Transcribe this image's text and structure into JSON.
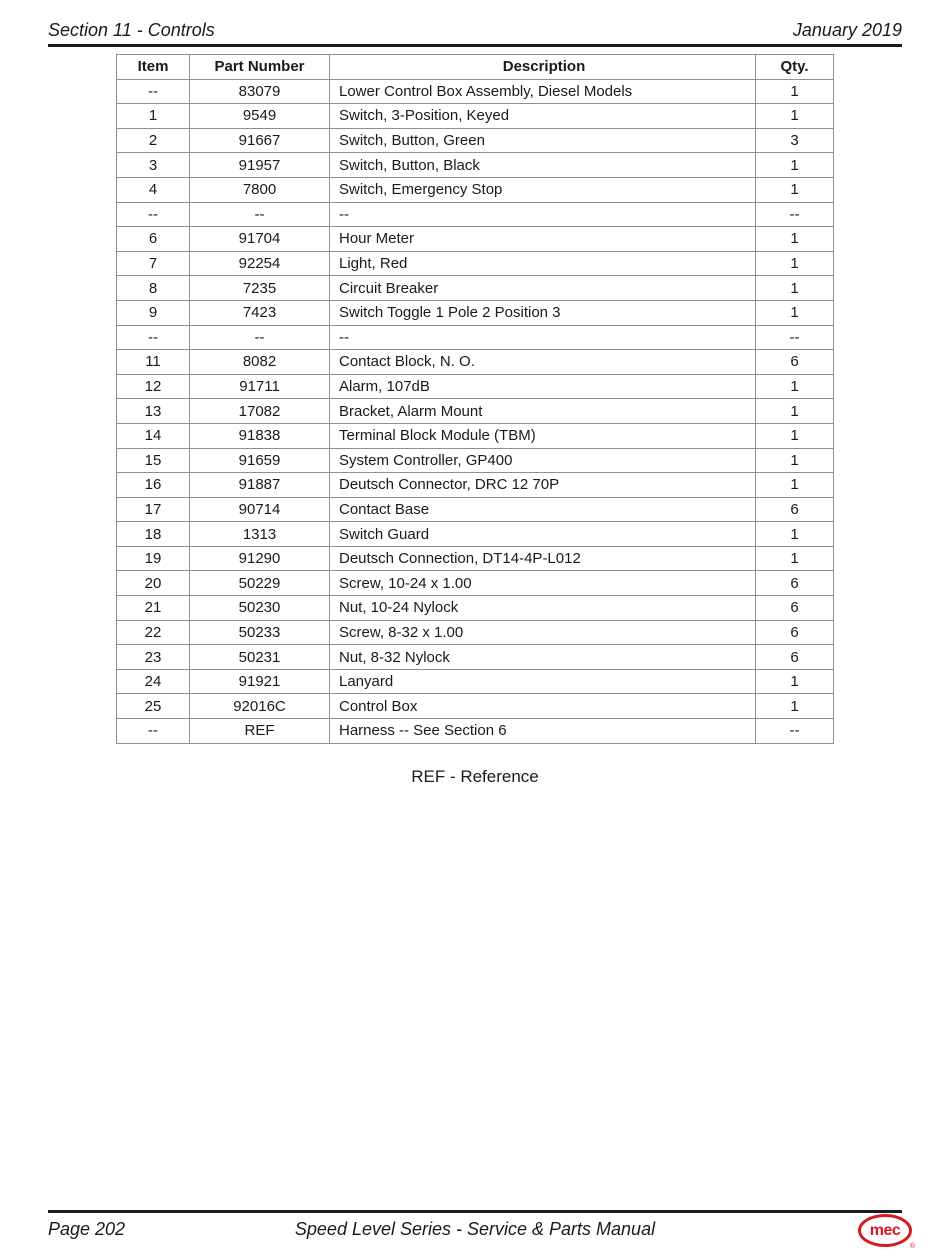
{
  "header": {
    "section_title": "Section 11 - Controls",
    "date": "January 2019"
  },
  "table": {
    "columns": [
      "Item",
      "Part Number",
      "Description",
      "Qty."
    ],
    "rows": [
      [
        "--",
        "83079",
        "Lower Control Box Assembly, Diesel Models",
        "1"
      ],
      [
        "1",
        "9549",
        "Switch, 3-Position, Keyed",
        "1"
      ],
      [
        "2",
        "91667",
        "Switch, Button, Green",
        "3"
      ],
      [
        "3",
        "91957",
        "Switch, Button, Black",
        "1"
      ],
      [
        "4",
        "7800",
        "Switch, Emergency Stop",
        "1"
      ],
      [
        "--",
        "--",
        "--",
        "--"
      ],
      [
        "6",
        "91704",
        "Hour Meter",
        "1"
      ],
      [
        "7",
        "92254",
        "Light, Red",
        "1"
      ],
      [
        "8",
        "7235",
        "Circuit Breaker",
        "1"
      ],
      [
        "9",
        "7423",
        "Switch Toggle 1 Pole 2 Position 3",
        "1"
      ],
      [
        "--",
        "--",
        "--",
        "--"
      ],
      [
        "11",
        "8082",
        "Contact Block, N. O.",
        "6"
      ],
      [
        "12",
        "91711",
        "Alarm, 107dB",
        "1"
      ],
      [
        "13",
        "17082",
        "Bracket, Alarm Mount",
        "1"
      ],
      [
        "14",
        "91838",
        "Terminal Block Module (TBM)",
        "1"
      ],
      [
        "15",
        "91659",
        "System Controller, GP400",
        "1"
      ],
      [
        "16",
        "91887",
        "Deutsch Connector, DRC 12 70P",
        "1"
      ],
      [
        "17",
        "90714",
        "Contact Base",
        "6"
      ],
      [
        "18",
        "1313",
        "Switch Guard",
        "1"
      ],
      [
        "19",
        "91290",
        "Deutsch Connection, DT14-4P-L012",
        "1"
      ],
      [
        "20",
        "50229",
        "Screw, 10-24 x 1.00",
        "6"
      ],
      [
        "21",
        "50230",
        "Nut, 10-24 Nylock",
        "6"
      ],
      [
        "22",
        "50233",
        "Screw, 8-32 x 1.00",
        "6"
      ],
      [
        "23",
        "50231",
        "Nut, 8-32 Nylock",
        "6"
      ],
      [
        "24",
        "91921",
        "Lanyard",
        "1"
      ],
      [
        "25",
        "92016C",
        "Control Box",
        "1"
      ],
      [
        "--",
        "REF",
        "Harness -- See Section 6",
        "--"
      ]
    ]
  },
  "note": {
    "text": "REF - Reference"
  },
  "footer": {
    "page_label": "Page 202",
    "manual_title": "Speed Level Series - Service & Parts Manual",
    "logo_text": "mec",
    "logo_reg_mark": "®"
  },
  "colors": {
    "rule_black": "#1c1c1c",
    "table_border_gray": "#8f8f8f",
    "logo_red": "#d71920",
    "text": "#1a1a1a"
  }
}
